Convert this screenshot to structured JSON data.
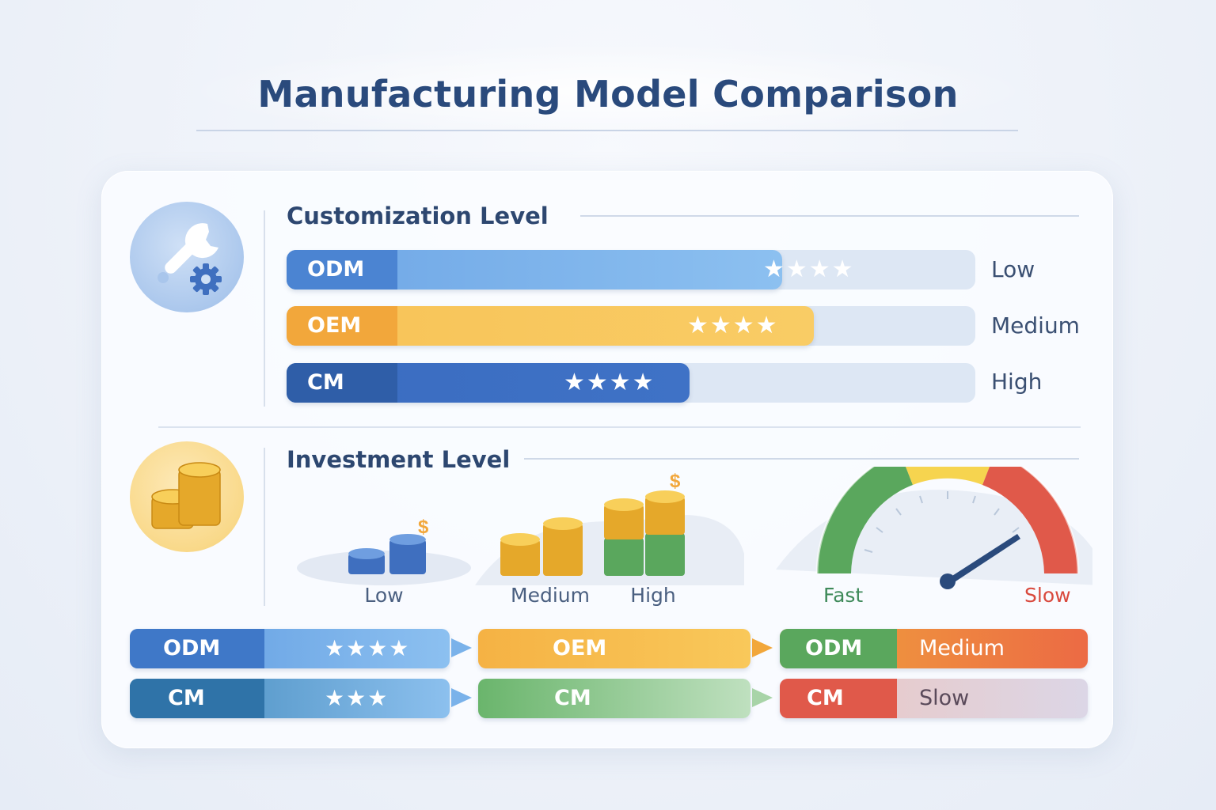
{
  "page": {
    "title": "Manufacturing Model Comparison"
  },
  "customization": {
    "heading": "Customization Level",
    "rows": [
      {
        "tag": "ODM",
        "stars": "★★★★",
        "level": "Low",
        "fill": 0.72
      },
      {
        "tag": "OEM",
        "stars": "★★★★",
        "level": "Medium",
        "fill": 0.765
      },
      {
        "tag": "CM",
        "stars": "★★★★",
        "level": "High",
        "fill": 0.585
      }
    ]
  },
  "investment": {
    "heading": "Investment Level",
    "stacks": [
      {
        "label": "Low",
        "symbol": "$"
      },
      {
        "label": "Medium"
      },
      {
        "label": "High",
        "symbol": "$"
      }
    ],
    "gauge": {
      "left_label": "Fast",
      "right_label": "Slow"
    }
  },
  "summary": {
    "col1": [
      {
        "tag": "ODM",
        "stars": "★★★★"
      },
      {
        "tag": "CM",
        "stars": "★★★"
      }
    ],
    "col2": [
      {
        "tag": "OEM"
      },
      {
        "tag": "CM"
      }
    ],
    "col3": [
      {
        "tag": "ODM",
        "value": "Medium"
      },
      {
        "tag": "CM",
        "value": "Slow"
      }
    ]
  },
  "colors": {
    "blue_dark": "#3f6fbf",
    "blue_light": "#7ab2ea",
    "orange": "#f2a73b",
    "yellow": "#f9c85a",
    "navy": "#2f5ea8",
    "green": "#5aa75d",
    "red": "#e0594a"
  }
}
